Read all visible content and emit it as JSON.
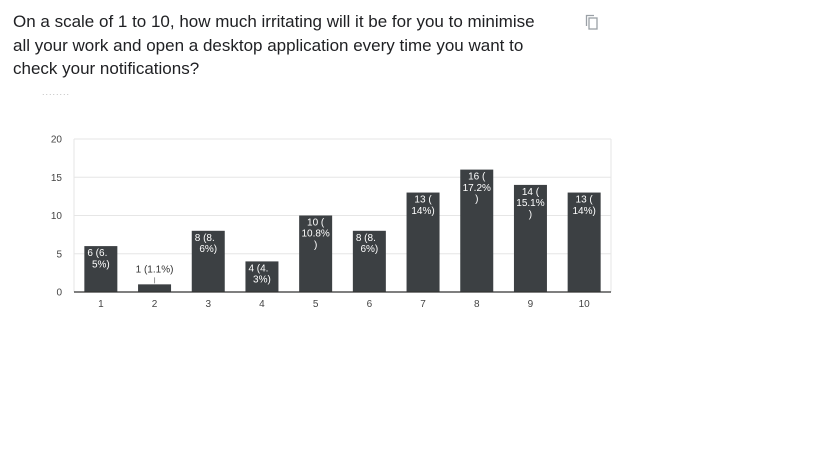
{
  "question": {
    "lines": [
      "On a scale of 1 to 10, how much irritating will it be for you to minimise",
      "all your work and open a desktop application every time you want to",
      "check your notifications?"
    ]
  },
  "toolbar": {
    "copy_icon": "copy-icon"
  },
  "decor": {
    "dots": "........"
  },
  "chart_data": {
    "type": "bar",
    "title": "",
    "xlabel": "",
    "ylabel": "",
    "categories": [
      "1",
      "2",
      "3",
      "4",
      "5",
      "6",
      "7",
      "8",
      "9",
      "10"
    ],
    "values": [
      6,
      1,
      8,
      4,
      10,
      8,
      13,
      16,
      14,
      13
    ],
    "data_labels": [
      [
        "6 (6.",
        "5%)"
      ],
      [
        "1 (1.1%)"
      ],
      [
        "8 (8.",
        "6%)"
      ],
      [
        "4 (4.",
        "3%)"
      ],
      [
        "10 (",
        "10.8%",
        ")"
      ],
      [
        "8 (8.",
        "6%)"
      ],
      [
        "13 (",
        "14%)"
      ],
      [
        "16 (",
        "17.2%",
        ")"
      ],
      [
        "14 (",
        "15.1%",
        ")"
      ],
      [
        "13 (",
        "14%)"
      ]
    ],
    "ylim": [
      0,
      20
    ],
    "yticks": [
      0,
      5,
      10,
      15,
      20
    ],
    "grid": true,
    "bar_color": "#3c4043",
    "grid_color": "#e6e6e6",
    "axis_color": "#333333"
  }
}
